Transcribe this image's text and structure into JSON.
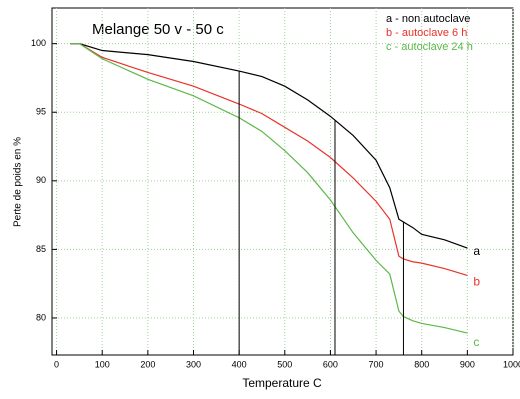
{
  "chart_data": {
    "type": "line",
    "title": "Melange  50 v - 50 c",
    "x_label": "Temperature  C",
    "y_label": "Perte de poids en %",
    "x": [
      30,
      50,
      100,
      200,
      300,
      400,
      450,
      500,
      550,
      600,
      650,
      700,
      730,
      750,
      760,
      780,
      800,
      850,
      900
    ],
    "series": [
      {
        "name": "a - non autoclave",
        "end_label": "a",
        "color": "#000000",
        "values": [
          100,
          100,
          99.5,
          99.2,
          98.7,
          98,
          97.6,
          96.9,
          95.9,
          94.7,
          93.3,
          91.5,
          89.5,
          87.2,
          87,
          86.6,
          86.1,
          85.7,
          85.1
        ]
      },
      {
        "name": "b - autoclave  6 h",
        "end_label": "b",
        "color": "#e8332a",
        "values": [
          100,
          100,
          99,
          97.9,
          96.9,
          95.6,
          94.9,
          93.9,
          92.9,
          91.7,
          90.2,
          88.5,
          87.2,
          84.5,
          84.3,
          84.1,
          84,
          83.6,
          83.1
        ]
      },
      {
        "name": "c - autoclave 24 h",
        "end_label": "c",
        "color": "#5db848",
        "values": [
          100,
          100,
          98.9,
          97.4,
          96.2,
          94.6,
          93.6,
          92.2,
          90.6,
          88.6,
          86.2,
          84.2,
          83.2,
          80.5,
          80.1,
          79.8,
          79.6,
          79.3,
          78.9
        ]
      }
    ],
    "vlines": [
      400,
      610,
      760
    ],
    "xlim": [
      -10,
      1000
    ],
    "xticks": [
      0,
      100,
      200,
      300,
      400,
      500,
      600,
      700,
      800,
      900,
      1000
    ],
    "ylim": [
      77.3,
      102.6
    ],
    "yticks": [
      80,
      85,
      90,
      95,
      100
    ],
    "grid": true,
    "grid_color": "#9fd49a",
    "legend": "upper right"
  }
}
